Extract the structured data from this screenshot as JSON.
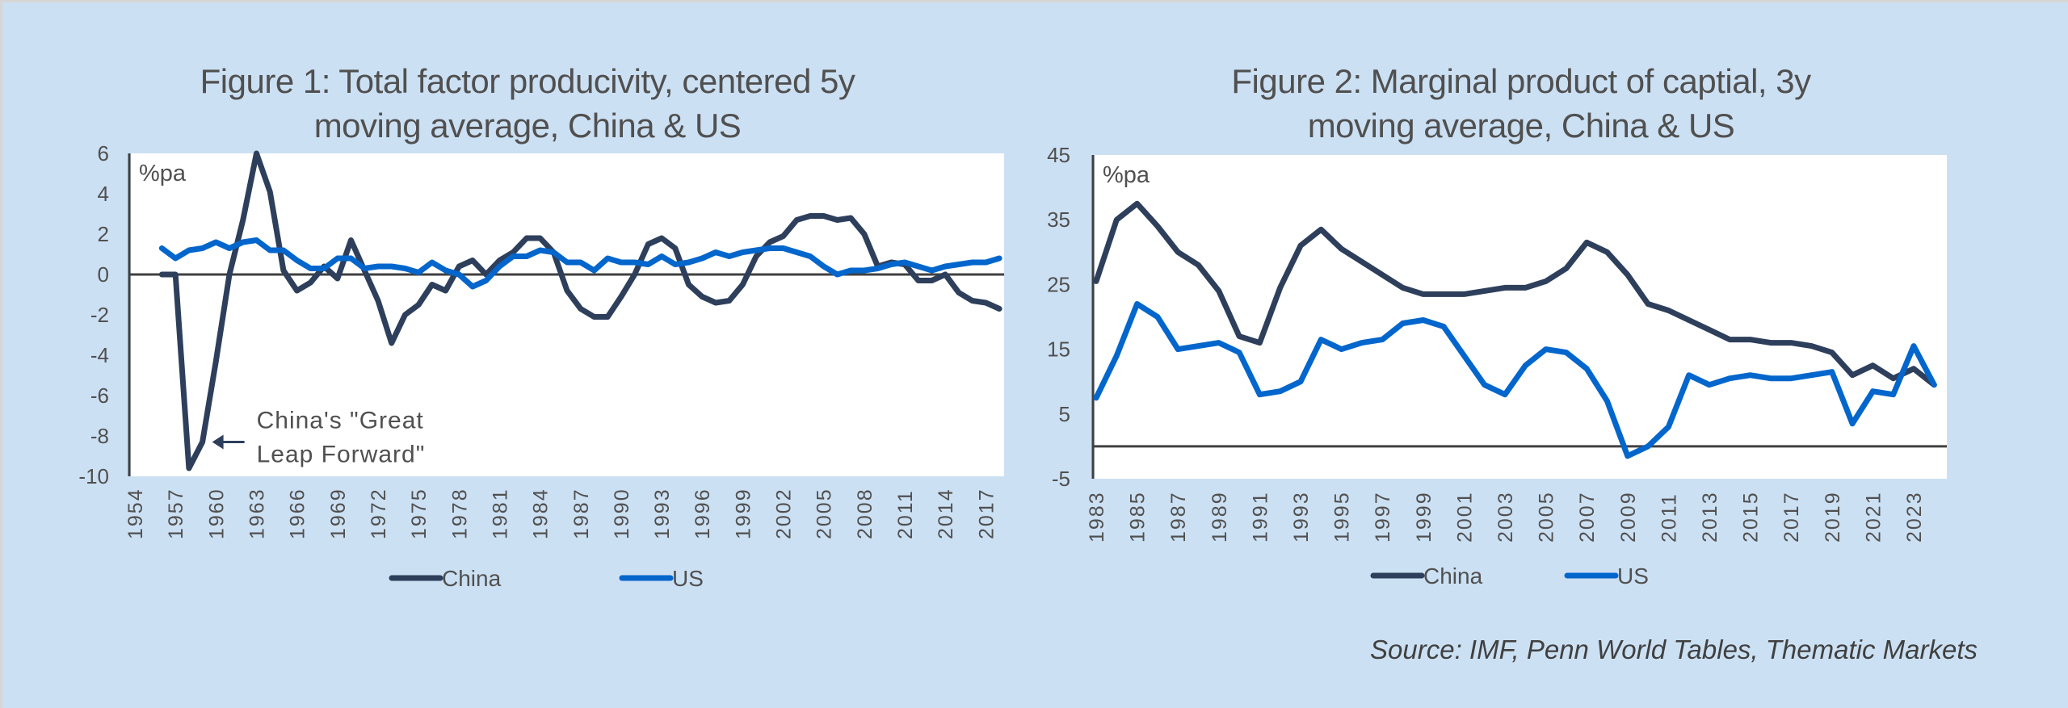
{
  "source": "Source: IMF, Penn World Tables, Thematic Markets",
  "colors": {
    "background": "#cce0f3",
    "plot_bg": "#ffffff",
    "china": "#2e3f5c",
    "us": "#0366cc",
    "axis": "#404040",
    "text": "#505050"
  },
  "chart_data": [
    {
      "id": "fig1",
      "type": "line",
      "title_line1": "Figure 1: Total factor producivity, centered 5y",
      "title_line2": "moving average, China & US",
      "unit_label": "%pa",
      "xlabel": "",
      "ylabel": "%pa",
      "ylim": [
        -10,
        6
      ],
      "yticks": [
        6,
        4,
        2,
        0,
        -2,
        -4,
        -6,
        -8,
        -10
      ],
      "xlim": [
        1954,
        2018
      ],
      "xticks": [
        1954,
        1957,
        1960,
        1963,
        1966,
        1969,
        1972,
        1975,
        1978,
        1981,
        1984,
        1987,
        1990,
        1993,
        1996,
        1999,
        2002,
        2005,
        2008,
        2011,
        2014,
        2017
      ],
      "grid": false,
      "legend_position": "bottom",
      "annotation": {
        "line1": "China's \"Great",
        "line2": "Leap Forward\"",
        "points_to_year": 1959,
        "points_to_value": -8.3
      },
      "series": [
        {
          "name": "China",
          "color": "#2e3f5c",
          "x": [
            1956,
            1957,
            1958,
            1959,
            1960,
            1961,
            1962,
            1963,
            1964,
            1965,
            1966,
            1967,
            1968,
            1969,
            1970,
            1971,
            1972,
            1973,
            1974,
            1975,
            1976,
            1977,
            1978,
            1979,
            1980,
            1981,
            1982,
            1983,
            1984,
            1985,
            1986,
            1987,
            1988,
            1989,
            1990,
            1991,
            1992,
            1993,
            1994,
            1995,
            1996,
            1997,
            1998,
            1999,
            2000,
            2001,
            2002,
            2003,
            2004,
            2005,
            2006,
            2007,
            2008,
            2009,
            2010,
            2011,
            2012,
            2013,
            2014,
            2015,
            2016,
            2017,
            2018
          ],
          "values": [
            0,
            0,
            -9.6,
            -8.3,
            -4.3,
            0,
            2.7,
            6,
            4.1,
            0.2,
            -0.8,
            -0.4,
            0.4,
            -0.2,
            1.7,
            0.2,
            -1.3,
            -3.4,
            -2,
            -1.5,
            -0.5,
            -0.8,
            0.4,
            0.7,
            0,
            0.7,
            1.1,
            1.8,
            1.8,
            1.1,
            -0.8,
            -1.7,
            -2.1,
            -2.1,
            -1.1,
            0,
            1.5,
            1.8,
            1.3,
            -0.5,
            -1.1,
            -1.4,
            -1.3,
            -0.5,
            0.9,
            1.6,
            1.9,
            2.7,
            2.9,
            2.9,
            2.7,
            2.8,
            2,
            0.4,
            0.6,
            0.5,
            -0.3,
            -0.3,
            0,
            -0.9,
            -1.3,
            -1.4,
            -1.7
          ]
        },
        {
          "name": "US",
          "color": "#0366cc",
          "x": [
            1956,
            1957,
            1958,
            1959,
            1960,
            1961,
            1962,
            1963,
            1964,
            1965,
            1966,
            1967,
            1968,
            1969,
            1970,
            1971,
            1972,
            1973,
            1974,
            1975,
            1976,
            1977,
            1978,
            1979,
            1980,
            1981,
            1982,
            1983,
            1984,
            1985,
            1986,
            1987,
            1988,
            1989,
            1990,
            1991,
            1992,
            1993,
            1994,
            1995,
            1996,
            1997,
            1998,
            1999,
            2000,
            2001,
            2002,
            2003,
            2004,
            2005,
            2006,
            2007,
            2008,
            2009,
            2010,
            2011,
            2012,
            2013,
            2014,
            2015,
            2016,
            2017,
            2018
          ],
          "values": [
            1.3,
            0.8,
            1.2,
            1.3,
            1.6,
            1.3,
            1.6,
            1.7,
            1.2,
            1.2,
            0.7,
            0.3,
            0.3,
            0.8,
            0.8,
            0.3,
            0.4,
            0.4,
            0.3,
            0.1,
            0.6,
            0.2,
            0,
            -0.6,
            -0.3,
            0.4,
            0.9,
            0.9,
            1.2,
            1.1,
            0.6,
            0.6,
            0.2,
            0.8,
            0.6,
            0.6,
            0.5,
            0.9,
            0.5,
            0.6,
            0.8,
            1.1,
            0.9,
            1.1,
            1.2,
            1.3,
            1.3,
            1.1,
            0.9,
            0.4,
            0,
            0.2,
            0.2,
            0.3,
            0.5,
            0.6,
            0.4,
            0.2,
            0.4,
            0.5,
            0.6,
            0.6,
            0.8
          ]
        }
      ]
    },
    {
      "id": "fig2",
      "type": "line",
      "title_line1": "Figure 2: Marginal product of captial, 3y",
      "title_line2": "moving average, China & US",
      "unit_label": "%pa",
      "xlabel": "",
      "ylabel": "%pa",
      "ylim": [
        -5,
        45
      ],
      "yticks": [
        45,
        35,
        25,
        15,
        5,
        -5
      ],
      "xlim": [
        1983,
        2024
      ],
      "xticks": [
        1983,
        1985,
        1987,
        1989,
        1991,
        1993,
        1995,
        1997,
        1999,
        2001,
        2003,
        2005,
        2007,
        2009,
        2011,
        2013,
        2015,
        2017,
        2019,
        2021,
        2023
      ],
      "grid": false,
      "legend_position": "bottom",
      "series": [
        {
          "name": "China",
          "color": "#2e3f5c",
          "x": [
            1983,
            1984,
            1985,
            1986,
            1987,
            1988,
            1989,
            1990,
            1991,
            1992,
            1993,
            1994,
            1995,
            1996,
            1997,
            1998,
            1999,
            2000,
            2001,
            2002,
            2003,
            2004,
            2005,
            2006,
            2007,
            2008,
            2009,
            2010,
            2011,
            2012,
            2013,
            2014,
            2015,
            2016,
            2017,
            2018,
            2019,
            2020,
            2021,
            2022,
            2023,
            2024
          ],
          "values": [
            25.5,
            35,
            37.5,
            34,
            30,
            28,
            24,
            17,
            16,
            24.5,
            31,
            33.5,
            30.5,
            28.5,
            26.5,
            24.5,
            23.5,
            23.5,
            23.5,
            24,
            24.5,
            24.5,
            25.5,
            27.5,
            31.5,
            30,
            26.5,
            22,
            21,
            19.5,
            18,
            16.5,
            16.5,
            16,
            16,
            15.5,
            14.5,
            11,
            12.5,
            10.5,
            12,
            9.5
          ]
        },
        {
          "name": "US",
          "color": "#0366cc",
          "x": [
            1983,
            1984,
            1985,
            1986,
            1987,
            1988,
            1989,
            1990,
            1991,
            1992,
            1993,
            1994,
            1995,
            1996,
            1997,
            1998,
            1999,
            2000,
            2001,
            2002,
            2003,
            2004,
            2005,
            2006,
            2007,
            2008,
            2009,
            2010,
            2011,
            2012,
            2013,
            2014,
            2015,
            2016,
            2017,
            2018,
            2019,
            2020,
            2021,
            2022,
            2023,
            2024
          ],
          "values": [
            7.5,
            14,
            22,
            20,
            15,
            15.5,
            16,
            14.5,
            8,
            8.5,
            10,
            16.5,
            15,
            16,
            16.5,
            19,
            19.5,
            18.5,
            14,
            9.5,
            8,
            12.5,
            15,
            14.5,
            12,
            7,
            -1.5,
            0,
            3,
            11,
            9.5,
            10.5,
            11,
            10.5,
            10.5,
            11,
            11.5,
            3.5,
            8.5,
            8,
            15.5,
            9.5
          ]
        }
      ]
    }
  ]
}
